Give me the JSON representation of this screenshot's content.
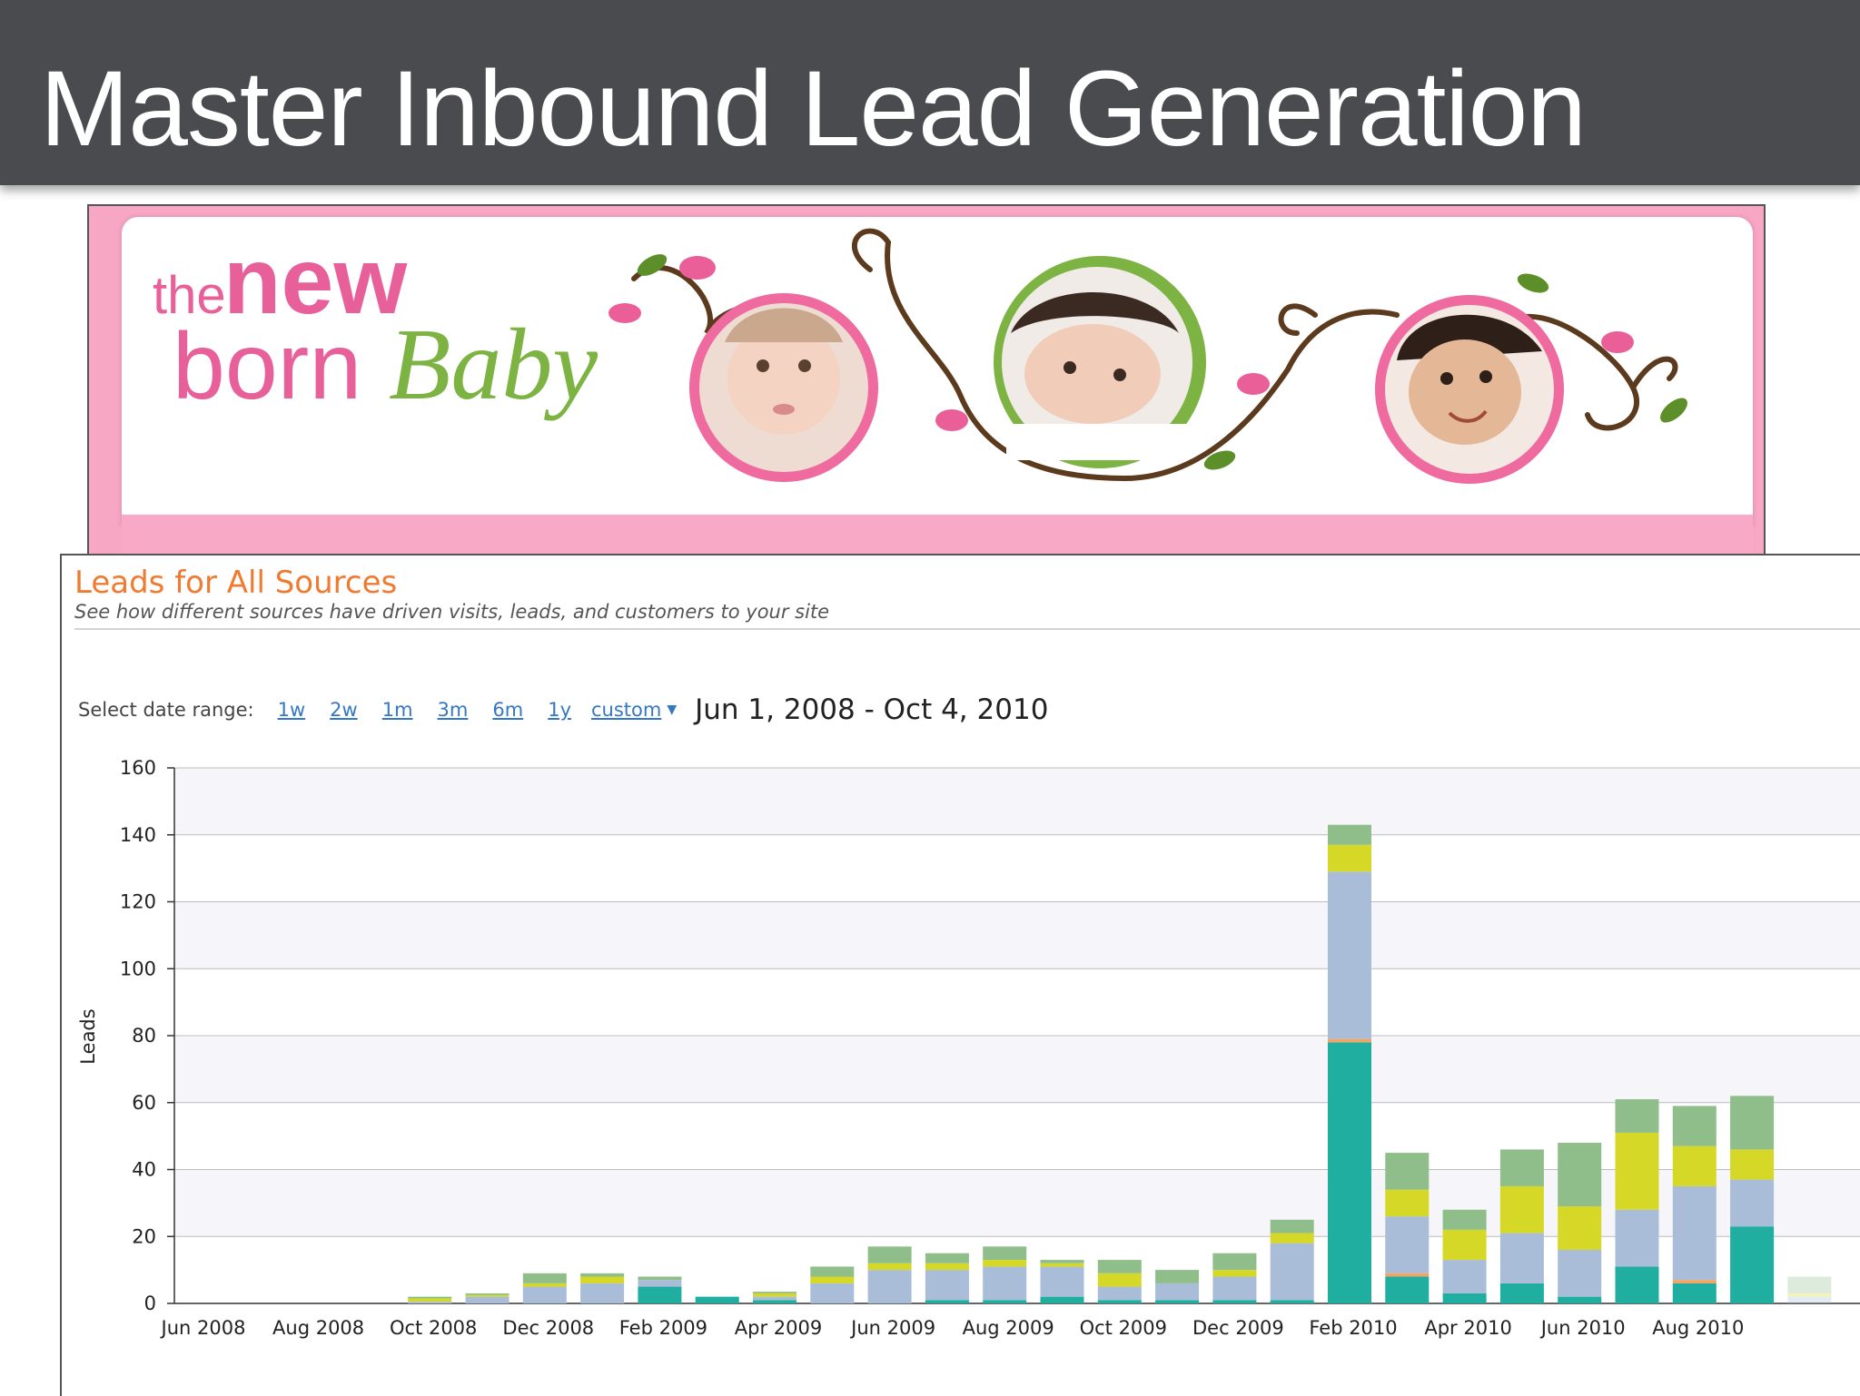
{
  "slide": {
    "title": "Master Inbound Lead Generation"
  },
  "banner": {
    "logo_text": {
      "line1_small": "the",
      "line1_big": "new",
      "line2a": "born",
      "line2b": "Baby"
    },
    "photos": [
      "baby-photo-1",
      "baby-photo-2",
      "baby-photo-3"
    ],
    "colors": {
      "pink": "#e8609a",
      "green": "#7cb342",
      "brown": "#5b3a1e",
      "stripe": "#f8a9c6"
    }
  },
  "panel": {
    "title": "Leads for All Sources",
    "subtitle": "See how different sources have driven visits, leads, and customers to your site",
    "date_range": {
      "label": "Select date range:",
      "options": [
        "1w",
        "2w",
        "1m",
        "3m",
        "6m",
        "1y"
      ],
      "custom_label": "custom",
      "current": "Jun 1, 2008 - Oct 4, 2010"
    }
  },
  "chart_data": {
    "type": "bar",
    "stacked": true,
    "ylabel": "Leads",
    "ylim": [
      0,
      160
    ],
    "yticks": [
      0,
      20,
      40,
      60,
      80,
      100,
      120,
      140,
      160
    ],
    "x_tick_labels": [
      "Jun 2008",
      "Aug 2008",
      "Oct 2008",
      "Dec 2008",
      "Feb 2009",
      "Apr 2009",
      "Jun 2009",
      "Aug 2009",
      "Oct 2009",
      "Dec 2009",
      "Feb 2010",
      "Apr 2010",
      "Jun 2010",
      "Aug 2010"
    ],
    "categories": [
      "Jun 2008",
      "Jul 2008",
      "Aug 2008",
      "Sep 2008",
      "Oct 2008",
      "Nov 2008",
      "Dec 2008",
      "Jan 2009",
      "Feb 2009",
      "Mar 2009",
      "Apr 2009",
      "May 2009",
      "Jun 2009",
      "Jul 2009",
      "Aug 2009",
      "Sep 2009",
      "Oct 2009",
      "Nov 2009",
      "Dec 2009",
      "Jan 2010",
      "Feb 2010",
      "Mar 2010",
      "Apr 2010",
      "May 2010",
      "Jun 2010",
      "Jul 2010",
      "Aug 2010",
      "Sep 2010",
      "Oct 2010"
    ],
    "series": [
      {
        "color": "#20aea0",
        "values": [
          0,
          0,
          0,
          0,
          0,
          0,
          0,
          0,
          5,
          2,
          1,
          0,
          0,
          1,
          1,
          2,
          1,
          1,
          1,
          1,
          78,
          8,
          3,
          6,
          2,
          11,
          6,
          23,
          0
        ]
      },
      {
        "color": "#f4a460",
        "values": [
          0,
          0,
          0,
          0,
          0,
          0,
          0,
          0,
          0,
          0,
          0,
          0,
          0,
          0,
          0,
          0,
          0,
          0,
          0,
          0,
          1,
          1,
          0,
          0,
          0,
          0,
          1,
          0,
          0
        ]
      },
      {
        "color": "#a9bcd8",
        "values": [
          0,
          0,
          0,
          0,
          0.5,
          2,
          5,
          6,
          2,
          0,
          1,
          6,
          10,
          9,
          10,
          9,
          4,
          5,
          7,
          17,
          50,
          17,
          10,
          15,
          14,
          17,
          28,
          14,
          2
        ]
      },
      {
        "color": "#d6d827",
        "values": [
          0,
          0,
          0,
          0,
          1,
          0.5,
          1,
          2,
          0,
          0,
          1,
          2,
          2,
          2,
          2,
          1,
          4,
          0,
          2,
          3,
          8,
          8,
          9,
          14,
          13,
          23,
          12,
          9,
          1
        ]
      },
      {
        "color": "#8fbe8a",
        "values": [
          0,
          0,
          0,
          0,
          0.5,
          0.5,
          3,
          1,
          1,
          0,
          0.5,
          3,
          5,
          3,
          4,
          1,
          4,
          4,
          5,
          4,
          6,
          11,
          6,
          11,
          19,
          10,
          12,
          16,
          5
        ]
      }
    ]
  }
}
